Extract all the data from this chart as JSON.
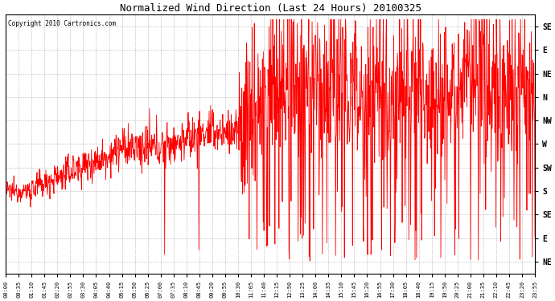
{
  "title": "Normalized Wind Direction (Last 24 Hours) 20100325",
  "copyright_text": "Copyright 2010 Cartronics.com",
  "line_color": "#ff0000",
  "background_color": "#ffffff",
  "plot_bg_color": "#ffffff",
  "grid_color": "#888888",
  "ytick_labels_top_to_bottom": [
    "SE",
    "E",
    "NE",
    "N",
    "NW",
    "W",
    "SW",
    "S",
    "SE",
    "E",
    "NE"
  ],
  "ytick_positions": [
    10,
    9,
    8,
    7,
    6,
    5,
    4,
    3,
    2,
    1,
    0
  ],
  "ylim": [
    -0.5,
    10.5
  ],
  "xtick_labels": [
    "00:00",
    "00:35",
    "01:10",
    "01:45",
    "02:20",
    "02:55",
    "03:30",
    "04:05",
    "04:40",
    "05:15",
    "05:50",
    "06:25",
    "07:00",
    "07:35",
    "08:10",
    "08:45",
    "09:20",
    "09:55",
    "10:30",
    "11:05",
    "11:40",
    "12:15",
    "12:50",
    "13:25",
    "14:00",
    "14:35",
    "15:10",
    "15:45",
    "16:20",
    "16:55",
    "17:30",
    "18:05",
    "18:40",
    "19:15",
    "19:50",
    "20:25",
    "21:00",
    "21:35",
    "22:10",
    "22:45",
    "23:20",
    "23:55"
  ],
  "figsize": [
    6.9,
    3.75
  ],
  "dpi": 100
}
